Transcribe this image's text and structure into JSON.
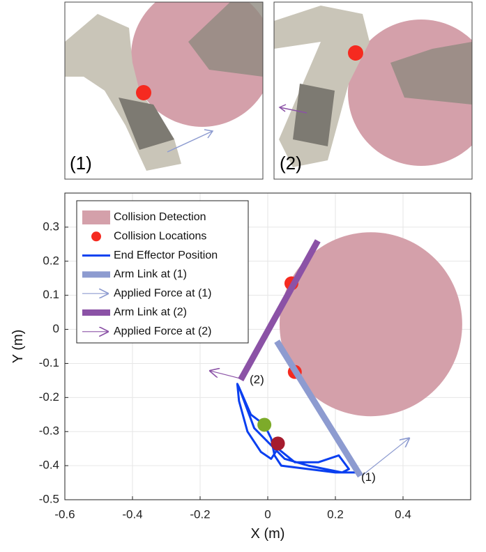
{
  "photos": [
    {
      "label": "(1)"
    },
    {
      "label": "(2)"
    }
  ],
  "chart_data": {
    "type": "line",
    "x_label": "X (m)",
    "y_label": "Y (m)",
    "xlim": [
      -0.6,
      0.6
    ],
    "ylim": [
      -0.5,
      0.4
    ],
    "xticks": [
      -0.6,
      -0.4,
      -0.2,
      0,
      0.2,
      0.4
    ],
    "yticks": [
      -0.5,
      -0.4,
      -0.3,
      -0.2,
      -0.1,
      0,
      0.1,
      0.2,
      0.3
    ],
    "grid": true,
    "legend": "upper left",
    "annotations": [
      "(1)",
      "(2)"
    ],
    "series": [
      {
        "name": "Collision Detection",
        "type": "circle",
        "color": "#d4a0aa",
        "x": [
          0.305
        ],
        "values": [
          0.015
        ],
        "radius": 0.27
      },
      {
        "name": "Collision Locations",
        "type": "scatter",
        "color": "#f52a20",
        "x": [
          0.07,
          0.08
        ],
        "values": [
          0.135,
          -0.125
        ]
      },
      {
        "name": "End Effector Position",
        "type": "line",
        "color": "#0a3ff0",
        "x": [
          0.26,
          0.2,
          0.12,
          0.04,
          0.02,
          0.01,
          -0.01,
          -0.05,
          -0.085,
          -0.09,
          -0.085,
          -0.06,
          -0.02,
          0.01,
          0.03,
          0.08,
          0.15,
          0.21,
          0.24,
          0.22,
          0.12,
          0.05,
          -0.04,
          -0.085
        ],
        "values": [
          -0.42,
          -0.42,
          -0.41,
          -0.4,
          -0.37,
          -0.32,
          -0.28,
          -0.25,
          -0.17,
          -0.16,
          -0.21,
          -0.3,
          -0.36,
          -0.38,
          -0.35,
          -0.39,
          -0.39,
          -0.37,
          -0.41,
          -0.42,
          -0.4,
          -0.38,
          -0.29,
          -0.17
        ]
      },
      {
        "type": "scatter",
        "color": "#7dab2a",
        "x": [
          -0.01
        ],
        "values": [
          -0.28
        ]
      },
      {
        "type": "scatter",
        "color": "#a61c2e",
        "x": [
          0.03
        ],
        "values": [
          -0.335
        ]
      },
      {
        "name": "Arm Link at (1)",
        "type": "link",
        "color": "#8d9bd0",
        "x": [
          0.027,
          0.274
        ],
        "values": [
          -0.035,
          -0.43
        ]
      },
      {
        "name": "Applied Force at (1)",
        "type": "arrow",
        "color": "#8d9bd0",
        "x": [
          0.278,
          0.42
        ],
        "values": [
          -0.43,
          -0.318
        ]
      },
      {
        "name": "Arm Link at (2)",
        "type": "link",
        "color": "#8b52a6",
        "x": [
          -0.08,
          0.148
        ],
        "values": [
          -0.148,
          0.26
        ]
      },
      {
        "name": "Applied Force at (2)",
        "type": "arrow",
        "color": "#8b52a6",
        "x": [
          -0.082,
          -0.173
        ],
        "values": [
          -0.144,
          -0.121
        ]
      }
    ]
  }
}
